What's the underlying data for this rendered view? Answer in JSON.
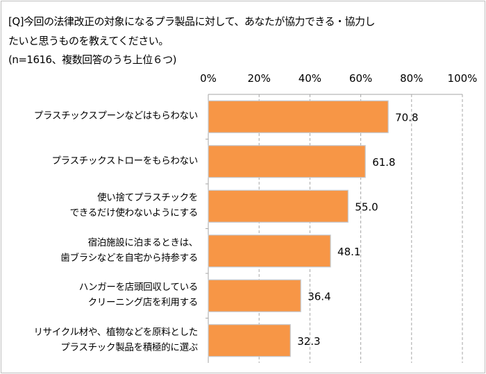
{
  "chart_data": {
    "type": "bar",
    "orientation": "horizontal",
    "title_lines": [
      "[Q]今回の法律改正の対象になるプラ製品に対して、あなたが協力できる・協力し",
      "たいと思うものを教えてください。",
      "(n=1616、複数回答のうち上位６つ)"
    ],
    "categories": [
      [
        "プラスチックスプーンなどはもらわない"
      ],
      [
        "プラスチックストローをもらわない"
      ],
      [
        "使い捨てプラスチックを",
        "できるだけ使わないようにする"
      ],
      [
        "宿泊施設に泊まるときは、",
        "歯ブラシなどを自宅から持参する"
      ],
      [
        "ハンガーを店頭回収している",
        "クリーニング店を利用する"
      ],
      [
        "リサイクル材や、植物などを原料とした",
        "プラスチック製品を積極的に選ぶ"
      ]
    ],
    "values": [
      70.8,
      61.8,
      55.0,
      48.1,
      36.4,
      32.3
    ],
    "value_labels": [
      "70.8",
      "61.8",
      "55.0",
      "48.1",
      "36.4",
      "32.3"
    ],
    "xlim": [
      0,
      100
    ],
    "xticks": [
      "0%",
      "20%",
      "40%",
      "60%",
      "80%",
      "100%"
    ],
    "xaxis_position": "top",
    "grid": "vertical dashed",
    "colors": {
      "bar": "#F79646",
      "bar_border": "#C3CBD3",
      "grid": "#A6A6A6"
    }
  }
}
